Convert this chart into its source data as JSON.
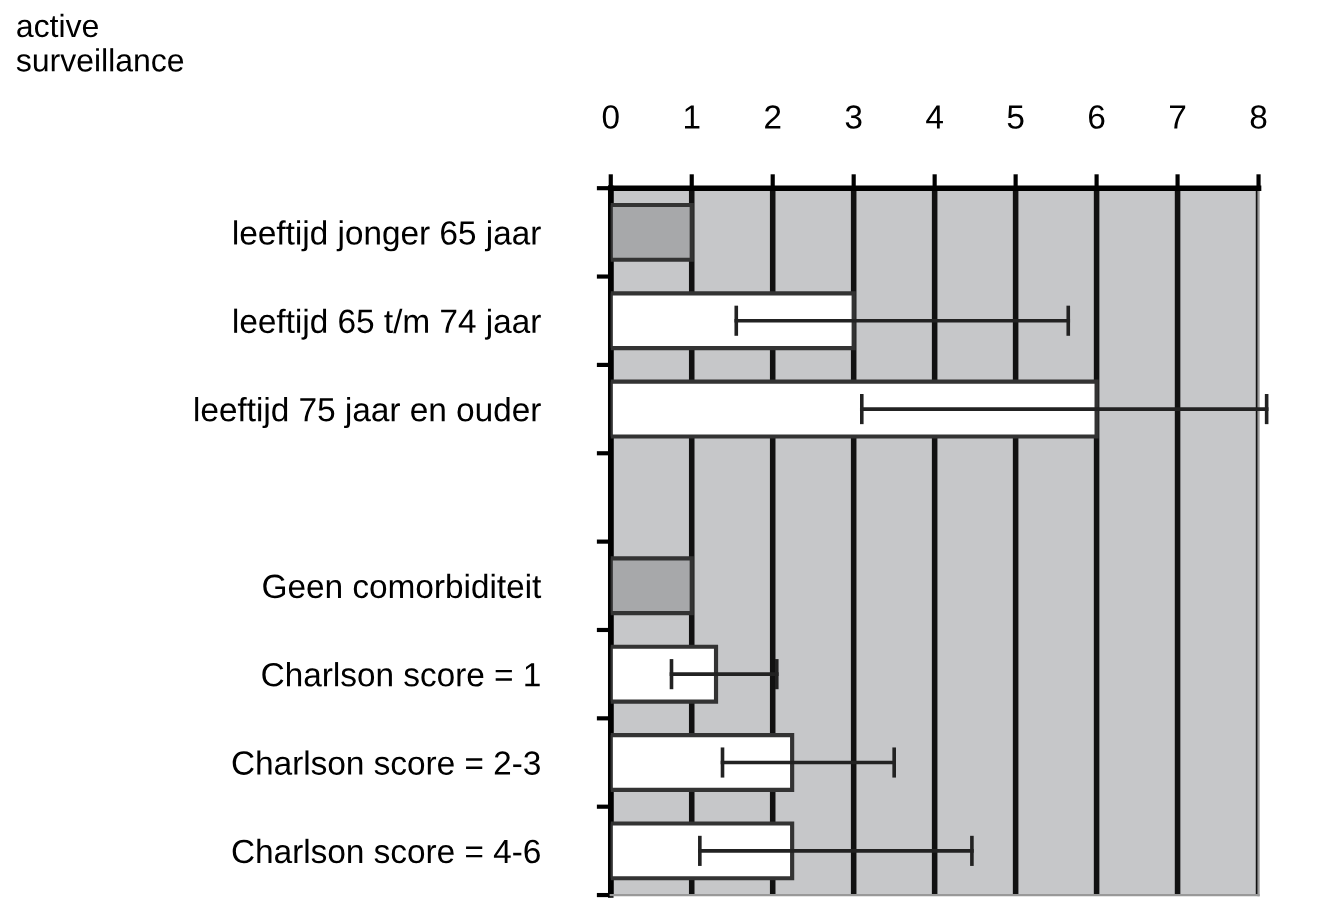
{
  "chart_data": {
    "type": "bar",
    "orientation": "horizontal",
    "title": "active\nsurveillance",
    "categories": [
      "leeftijd jonger 65 jaar",
      "leeftijd 65 t/m 74 jaar",
      "leeftijd 75 jaar en ouder",
      null,
      "Geen comorbiditeit",
      "Charlson score = 1",
      "Charlson score = 2-3",
      "Charlson score = 4-6"
    ],
    "values": [
      1,
      3.0,
      6.0,
      null,
      1,
      1.3,
      2.24,
      2.24
    ],
    "colors": [
      "#a7a8aa",
      "#ffffff",
      "#ffffff",
      null,
      "#a7a8aa",
      "#ffffff",
      "#ffffff",
      "#ffffff"
    ],
    "errors": [
      null,
      [
        1.55,
        5.65
      ],
      [
        3.1,
        8.1
      ],
      null,
      null,
      [
        0.75,
        2.05
      ],
      [
        1.38,
        3.5
      ],
      [
        1.1,
        4.46
      ]
    ],
    "xlim": [
      0,
      8
    ],
    "xticks": [
      0,
      1,
      2,
      3,
      4,
      5,
      6,
      7,
      8
    ],
    "grid": "x"
  }
}
